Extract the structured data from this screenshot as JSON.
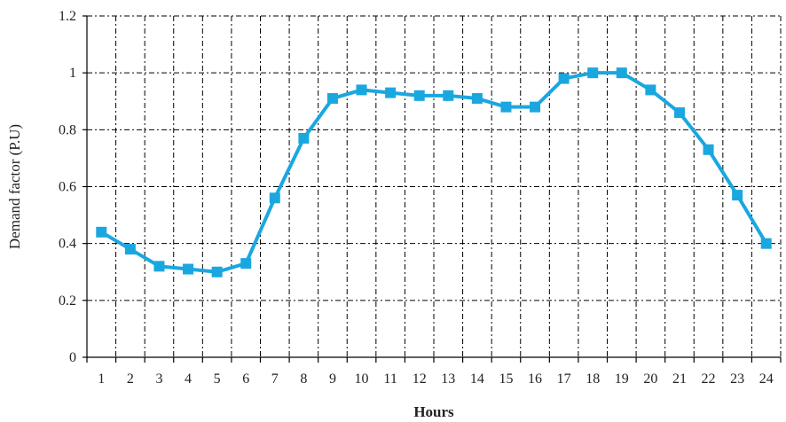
{
  "chart_data": {
    "type": "line",
    "title": "",
    "xlabel": "Hours",
    "ylabel": "Demand factor (P.U)",
    "categories": [
      "1",
      "2",
      "3",
      "4",
      "5",
      "6",
      "7",
      "8",
      "9",
      "10",
      "11",
      "12",
      "13",
      "14",
      "15",
      "16",
      "17",
      "18",
      "19",
      "20",
      "21",
      "22",
      "23",
      "24"
    ],
    "series": [
      {
        "values": [
          0.44,
          0.38,
          0.32,
          0.31,
          0.3,
          0.33,
          0.56,
          0.77,
          0.91,
          0.94,
          0.93,
          0.92,
          0.92,
          0.91,
          0.88,
          0.88,
          0.98,
          1.0,
          1.0,
          0.94,
          0.86,
          0.73,
          0.57,
          0.4
        ],
        "color": "#1aa7e0",
        "marker": "square"
      }
    ],
    "ylim": [
      0,
      1.2
    ],
    "yticks": [
      "0",
      "0.2",
      "0.4",
      "0.6",
      "0.8",
      "1",
      "1.2"
    ],
    "grid": true,
    "grid_style": "dash-dot",
    "legend": "none"
  }
}
